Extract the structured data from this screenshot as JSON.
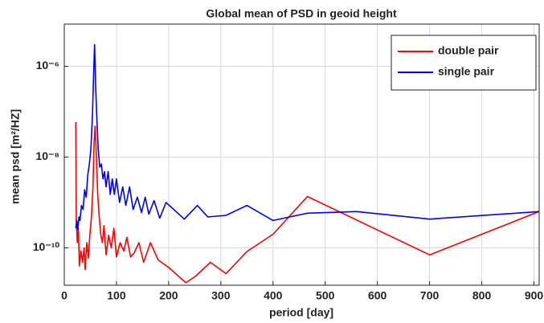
{
  "chart_data": {
    "type": "line",
    "title": "Global mean  of PSD in geoid height",
    "xlabel": "period [day]",
    "ylabel": "mean psd [m²/HZ]",
    "xlim": [
      0,
      910
    ],
    "xticks": [
      0,
      100,
      200,
      300,
      400,
      500,
      600,
      700,
      800,
      900
    ],
    "ylim": [
      1.5e-11,
      8.5e-06
    ],
    "yscale": "log",
    "yticks": [
      {
        "value": 1e-10,
        "label": "10⁻¹⁰"
      },
      {
        "value": 1e-08,
        "label": "10⁻⁸"
      },
      {
        "value": 1e-06,
        "label": "10⁻⁶"
      }
    ],
    "grid": true,
    "legend": "upper right",
    "series": [
      {
        "name": "double pair",
        "color": "#ff0000",
        "x": [
          22,
          23,
          25,
          27,
          29,
          32,
          35,
          38,
          40,
          43,
          46,
          49,
          52,
          55,
          57,
          59,
          61,
          64,
          67,
          70,
          73,
          76,
          80,
          85,
          90,
          95,
          100,
          107,
          114,
          120,
          127,
          134,
          143,
          152,
          165,
          180,
          200,
          233,
          252,
          280,
          310,
          350,
          400,
          466,
          700,
          910
        ],
        "values": [
          5.9e-08,
          4e-10,
          1.3e-10,
          2.7e-10,
          4e-11,
          8.5e-11,
          4.8e-11,
          1e-10,
          3.3e-11,
          1.3e-10,
          5.9e-11,
          1.9e-10,
          4.8e-10,
          2.2e-09,
          1.9e-08,
          4.8e-08,
          1.5e-08,
          1.5e-09,
          4.8e-10,
          1.9e-10,
          1.3e-10,
          3.1e-10,
          7e-11,
          1.9e-10,
          1e-10,
          2.7e-10,
          6.3e-11,
          1.3e-10,
          8.5e-11,
          1.7e-10,
          6.3e-11,
          7.8e-11,
          1.3e-10,
          4.8e-11,
          1.3e-10,
          5.4e-11,
          3.7e-11,
          1.7e-11,
          2.4e-11,
          4.8e-11,
          2.7e-11,
          8.3e-11,
          2e-10,
          1.35e-09,
          7e-11,
          6.3e-10
        ]
      },
      {
        "name": "single pair",
        "color": "#0000ff",
        "x": [
          22,
          24,
          26,
          28,
          30,
          33,
          36,
          39,
          42,
          45,
          48,
          51,
          54,
          56,
          58,
          60,
          62,
          65,
          68,
          71,
          74,
          77,
          80,
          84,
          88,
          92,
          96,
          100,
          106,
          112,
          118,
          125,
          132,
          140,
          148,
          155,
          162,
          172,
          183,
          195,
          230,
          255,
          275,
          310,
          350,
          400,
          466,
          560,
          700,
          910
        ],
        "values": [
          2.7e-10,
          4e-10,
          2.5e-10,
          4.8e-10,
          4e-10,
          8.6e-10,
          7e-10,
          1.9e-09,
          1.3e-09,
          4e-09,
          7e-09,
          1.5e-08,
          8.6e-08,
          5.9e-07,
          3e-06,
          4e-07,
          8.6e-08,
          1.5e-08,
          6e-09,
          7e-09,
          3.3e-09,
          4.8e-09,
          2.2e-09,
          4.8e-09,
          1.5e-09,
          3.3e-09,
          1.5e-09,
          3.3e-09,
          1e-09,
          2.2e-09,
          8.6e-10,
          2.2e-09,
          7e-10,
          1.3e-09,
          6e-10,
          1.3e-09,
          5.5e-10,
          1.1e-09,
          4.5e-10,
          1e-09,
          4.3e-10,
          8.6e-10,
          4.8e-10,
          5.2e-10,
          8.6e-10,
          4e-10,
          5.8e-10,
          6.3e-10,
          4.3e-10,
          6.3e-10
        ]
      }
    ]
  }
}
